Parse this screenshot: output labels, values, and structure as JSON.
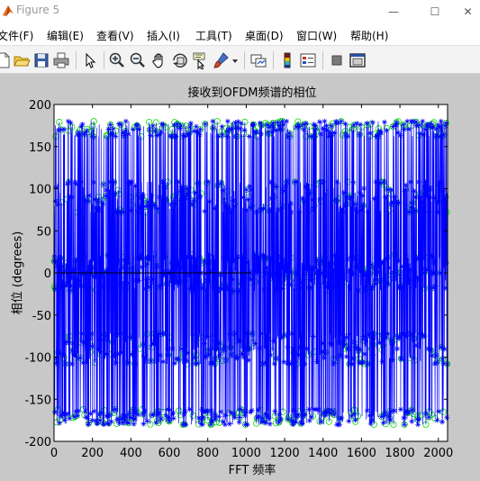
{
  "window": {
    "title": "Figure 5",
    "minimize_glyph": "—",
    "maximize_glyph": "☐",
    "close_glyph": "✕"
  },
  "menu": {
    "items": [
      {
        "label": "文件(F)"
      },
      {
        "label": "编辑(E)"
      },
      {
        "label": "查看(V)"
      },
      {
        "label": "插入(I)"
      },
      {
        "label": "工具(T)"
      },
      {
        "label": "桌面(D)"
      },
      {
        "label": "窗口(W)"
      },
      {
        "label": "帮助(H)"
      }
    ]
  },
  "toolbar": {
    "icons": [
      "new-figure-icon",
      "open-file-icon",
      "save-icon",
      "print-icon",
      "edit-plot-arrow-icon",
      "zoom-in-icon",
      "zoom-out-icon",
      "pan-hand-icon",
      "rotate-3d-icon",
      "data-cursor-icon",
      "brush-icon",
      "brush-dropdown-icon",
      "link-plot-icon",
      "colorbar-icon",
      "legend-icon",
      "hide-plot-tools-icon",
      "show-plot-tools-icon"
    ]
  },
  "colors": {
    "figure_bg": "#c8c8c8",
    "axes_bg": "#ffffff",
    "series_blue": "#0000ff",
    "series_green": "#00dd00"
  },
  "chart_data": {
    "type": "scatter",
    "title": "接收到OFDM频谱的相位",
    "xlabel": "FFT 频率",
    "ylabel": "相位 (degrees)",
    "xlim": [
      0,
      2048
    ],
    "ylim": [
      -200,
      200
    ],
    "xticks": [
      0,
      200,
      400,
      600,
      800,
      1000,
      1200,
      1400,
      1600,
      1800,
      2000
    ],
    "yticks": [
      200,
      150,
      100,
      50,
      0,
      -50,
      -100,
      -150,
      -200
    ],
    "grid": false,
    "n_points": 2048,
    "phase_levels_degrees": [
      -180,
      -162,
      -108,
      -90,
      -72,
      -18,
      0,
      18,
      72,
      90,
      108,
      162,
      180
    ],
    "zero_phase_interval": [
      0,
      1024
    ],
    "series": [
      {
        "marker": "*",
        "linestyle": "solid",
        "color": "#0000ff"
      },
      {
        "marker": "o",
        "linestyle": "none",
        "color": "#00dd00"
      }
    ]
  }
}
